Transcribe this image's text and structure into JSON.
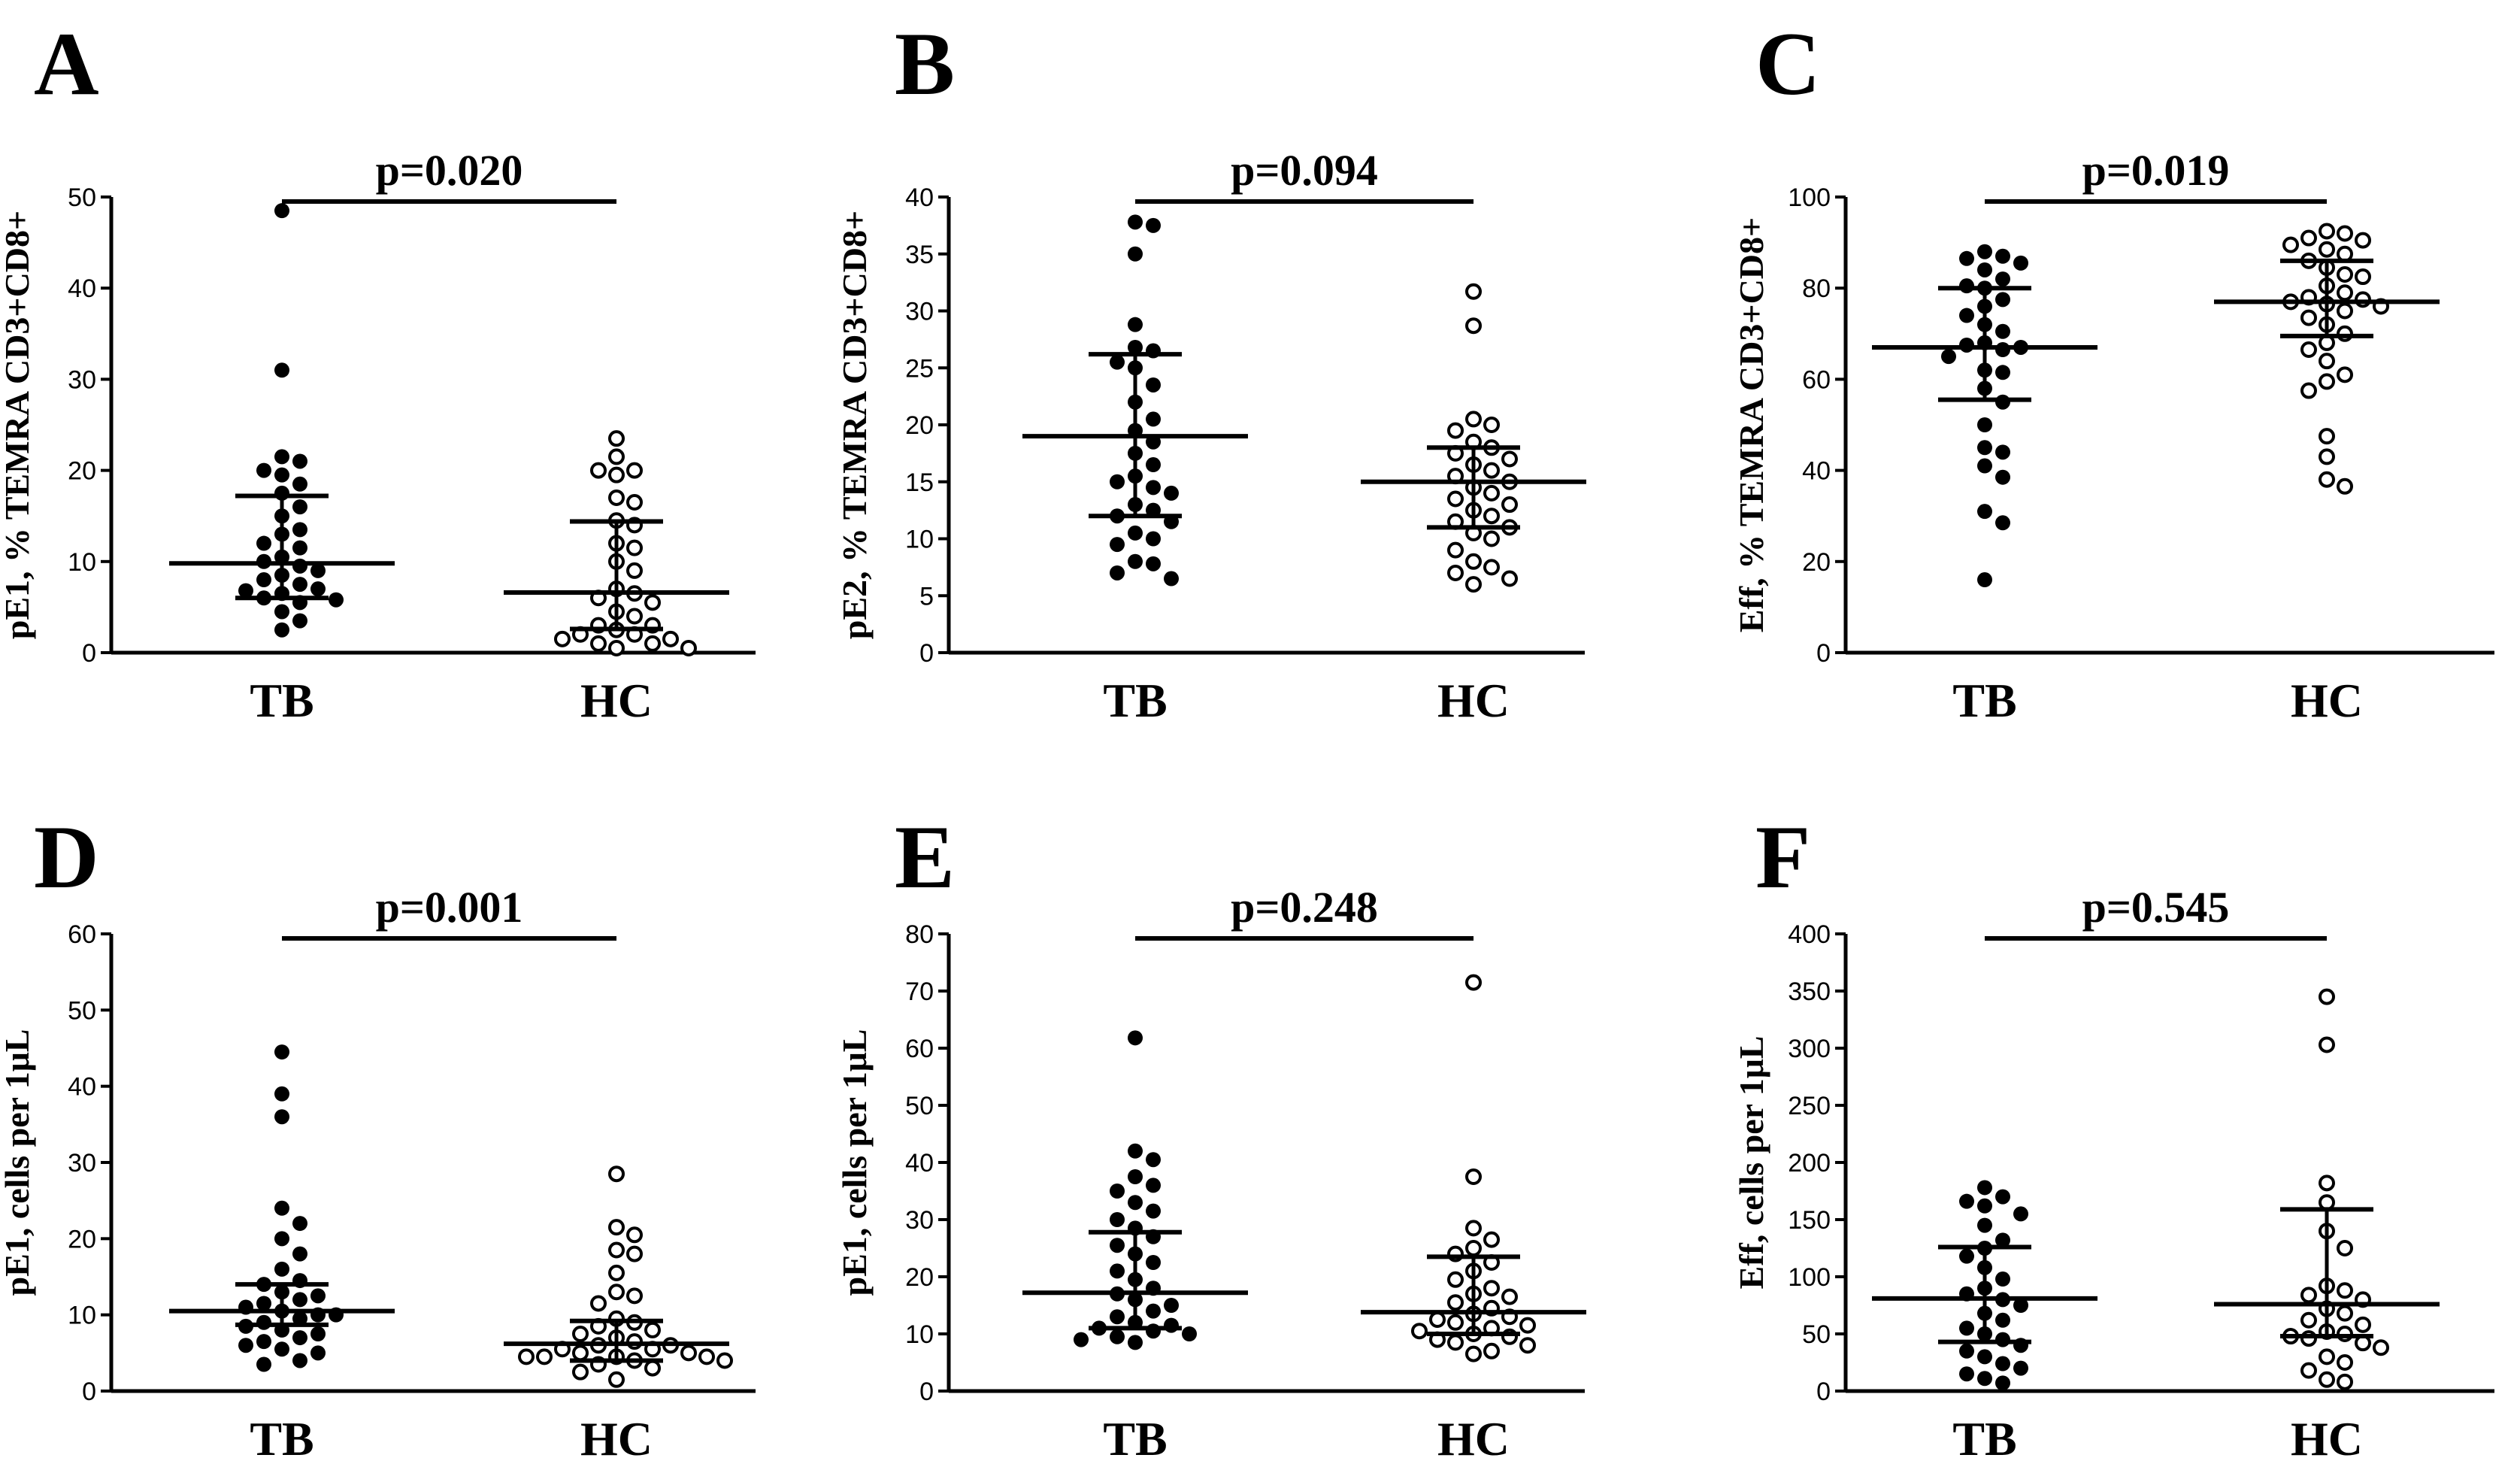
{
  "chart_data": [
    {
      "panel": "A",
      "type": "scatter",
      "ylabel": "pE1, % TEMRA CD3+CD8+",
      "categories": [
        "TB",
        "HC"
      ],
      "ylim": [
        0,
        50
      ],
      "yticks": [
        0,
        10,
        20,
        30,
        40,
        50
      ],
      "pvalue": "p=0.020",
      "series": [
        {
          "name": "TB",
          "marker": "filled",
          "median": 9.8,
          "q1": 6.0,
          "q3": 17.2,
          "values": [
            48.5,
            31.0,
            21.5,
            21.0,
            20.0,
            19.5,
            18.5,
            17.5,
            16.0,
            15.0,
            13.5,
            13.0,
            12.0,
            11.5,
            10.5,
            10.0,
            9.5,
            9.0,
            8.5,
            8.0,
            7.5,
            7.0,
            6.8,
            6.5,
            6.0,
            5.8,
            5.5,
            4.5,
            3.5,
            2.5
          ]
        },
        {
          "name": "HC",
          "marker": "open",
          "median": 6.6,
          "q1": 2.6,
          "q3": 14.4,
          "values": [
            23.5,
            21.5,
            20.0,
            20.0,
            19.5,
            17.0,
            16.5,
            14.5,
            14.0,
            12.0,
            11.5,
            10.0,
            9.0,
            7.0,
            6.5,
            6.0,
            5.5,
            4.5,
            4.0,
            3.0,
            3.0,
            2.5,
            2.0,
            2.0,
            1.5,
            1.5,
            1.0,
            1.0,
            0.5,
            0.5
          ]
        }
      ]
    },
    {
      "panel": "B",
      "type": "scatter",
      "ylabel": "pE2, % TEMRA CD3+CD8+",
      "categories": [
        "TB",
        "HC"
      ],
      "ylim": [
        0,
        40
      ],
      "yticks": [
        0,
        5,
        10,
        15,
        20,
        25,
        30,
        35,
        40
      ],
      "pvalue": "p=0.094",
      "series": [
        {
          "name": "TB",
          "marker": "filled",
          "median": 19.0,
          "q1": 12.0,
          "q3": 26.2,
          "values": [
            37.8,
            37.5,
            35.0,
            28.8,
            26.8,
            26.5,
            25.5,
            25.0,
            23.5,
            22.0,
            20.5,
            19.5,
            18.5,
            17.5,
            16.5,
            15.5,
            15.0,
            14.5,
            14.0,
            13.0,
            12.5,
            12.0,
            11.5,
            10.5,
            10.0,
            9.5,
            8.0,
            7.8,
            7.0,
            6.5
          ]
        },
        {
          "name": "HC",
          "marker": "open",
          "median": 15.0,
          "q1": 11.0,
          "q3": 18.0,
          "values": [
            31.7,
            28.7,
            20.5,
            20.0,
            19.5,
            18.5,
            18.0,
            17.5,
            17.0,
            16.5,
            16.0,
            15.5,
            15.0,
            14.5,
            14.0,
            13.5,
            13.0,
            12.5,
            12.0,
            11.5,
            11.0,
            10.5,
            10.0,
            9.0,
            8.0,
            7.5,
            7.0,
            6.5,
            6.0
          ]
        }
      ]
    },
    {
      "panel": "C",
      "type": "scatter",
      "ylabel": "Eff, % TEMRA CD3+CD8+",
      "categories": [
        "TB",
        "HC"
      ],
      "ylim": [
        0,
        100
      ],
      "yticks": [
        0,
        20,
        40,
        60,
        80,
        100
      ],
      "pvalue": "p=0.019",
      "series": [
        {
          "name": "TB",
          "marker": "filled",
          "median": 67.0,
          "q1": 55.5,
          "q3": 80.0,
          "values": [
            88.0,
            87.0,
            86.5,
            85.5,
            84.0,
            82.0,
            80.5,
            80.0,
            77.5,
            76.0,
            74.0,
            72.0,
            70.5,
            68.0,
            67.5,
            67.0,
            66.5,
            65.0,
            62.0,
            61.5,
            58.0,
            55.0,
            50.0,
            45.0,
            44.0,
            41.0,
            38.5,
            31.0,
            28.5,
            16.0
          ]
        },
        {
          "name": "HC",
          "marker": "open",
          "median": 77.0,
          "q1": 69.5,
          "q3": 86.0,
          "values": [
            92.5,
            92.0,
            91.0,
            90.5,
            89.5,
            88.5,
            87.5,
            86.0,
            84.5,
            83.0,
            82.5,
            80.5,
            79.0,
            78.0,
            77.5,
            77.0,
            76.5,
            76.0,
            75.0,
            73.5,
            72.0,
            70.0,
            68.0,
            66.5,
            64.0,
            61.0,
            59.5,
            57.5,
            47.5,
            43.0,
            38.0,
            36.5
          ]
        }
      ]
    },
    {
      "panel": "D",
      "type": "scatter",
      "ylabel": "pE1, cells per 1μL",
      "categories": [
        "TB",
        "HC"
      ],
      "ylim": [
        0,
        60
      ],
      "yticks": [
        0,
        10,
        20,
        30,
        40,
        50,
        60
      ],
      "pvalue": "p=0.001",
      "series": [
        {
          "name": "TB",
          "marker": "filled",
          "median": 10.5,
          "q1": 8.7,
          "q3": 14.0,
          "values": [
            44.5,
            39.0,
            36.0,
            24.0,
            22.0,
            20.0,
            18.0,
            16.0,
            14.5,
            14.0,
            13.0,
            12.5,
            12.0,
            11.5,
            11.0,
            10.5,
            10.0,
            10.0,
            9.5,
            9.0,
            8.5,
            8.0,
            7.5,
            7.0,
            6.5,
            6.0,
            5.5,
            5.0,
            4.0,
            3.5
          ]
        },
        {
          "name": "HC",
          "marker": "open",
          "median": 6.2,
          "q1": 4.0,
          "q3": 9.2,
          "values": [
            28.5,
            21.5,
            20.5,
            18.5,
            18.0,
            15.5,
            13.0,
            12.5,
            11.5,
            9.5,
            9.0,
            8.5,
            8.0,
            7.5,
            7.0,
            6.5,
            6.0,
            6.0,
            5.5,
            5.5,
            5.0,
            5.0,
            4.5,
            4.5,
            4.5,
            4.5,
            4.0,
            4.0,
            3.5,
            3.0,
            2.5,
            1.5
          ]
        }
      ]
    },
    {
      "panel": "E",
      "type": "scatter",
      "ylabel": "pE1, cells per 1μL",
      "categories": [
        "TB",
        "HC"
      ],
      "ylim": [
        0,
        80
      ],
      "yticks": [
        0,
        10,
        20,
        30,
        40,
        50,
        60,
        70,
        80
      ],
      "pvalue": "p=0.248",
      "series": [
        {
          "name": "TB",
          "marker": "filled",
          "median": 17.2,
          "q1": 11.0,
          "q3": 27.8,
          "values": [
            61.8,
            42.0,
            40.5,
            37.5,
            36.0,
            35.0,
            33.0,
            31.5,
            30.0,
            28.5,
            27.0,
            25.5,
            24.0,
            22.5,
            21.0,
            19.5,
            18.0,
            17.0,
            16.0,
            15.0,
            14.0,
            13.0,
            12.0,
            11.5,
            11.0,
            10.5,
            10.0,
            9.5,
            9.0,
            8.5
          ]
        },
        {
          "name": "HC",
          "marker": "open",
          "median": 13.8,
          "q1": 10.0,
          "q3": 23.5,
          "values": [
            71.5,
            37.5,
            28.5,
            26.5,
            25.0,
            24.0,
            22.5,
            21.0,
            19.5,
            18.0,
            17.0,
            16.5,
            15.5,
            14.5,
            13.5,
            13.0,
            12.5,
            12.0,
            11.5,
            11.0,
            10.5,
            10.0,
            9.5,
            9.0,
            8.5,
            8.0,
            7.0,
            6.5
          ]
        }
      ]
    },
    {
      "panel": "F",
      "type": "scatter",
      "ylabel": "Eff, cells per 1μL",
      "categories": [
        "TB",
        "HC"
      ],
      "ylim": [
        0,
        400
      ],
      "yticks": [
        0,
        50,
        100,
        150,
        200,
        250,
        300,
        350,
        400
      ],
      "pvalue": "p=0.545",
      "series": [
        {
          "name": "TB",
          "marker": "filled",
          "median": 81.0,
          "q1": 43.0,
          "q3": 126.0,
          "values": [
            178.0,
            170.0,
            166.0,
            162.0,
            155.0,
            145.0,
            132.0,
            125.0,
            118.0,
            108.0,
            98.0,
            90.0,
            85.0,
            80.0,
            75.0,
            68.0,
            62.0,
            55.0,
            50.0,
            45.0,
            40.0,
            35.0,
            30.0,
            24.0,
            20.0,
            15.0,
            11.0,
            7.0
          ]
        },
        {
          "name": "HC",
          "marker": "open",
          "median": 76.0,
          "q1": 48.0,
          "q3": 159.0,
          "values": [
            345.0,
            303.0,
            182.0,
            165.0,
            140.0,
            125.0,
            92.0,
            88.0,
            84.0,
            80.0,
            72.0,
            68.0,
            62.0,
            58.0,
            52.0,
            50.0,
            48.0,
            46.0,
            42.0,
            38.0,
            30.0,
            25.0,
            18.0,
            10.0,
            8.0
          ]
        }
      ]
    }
  ]
}
